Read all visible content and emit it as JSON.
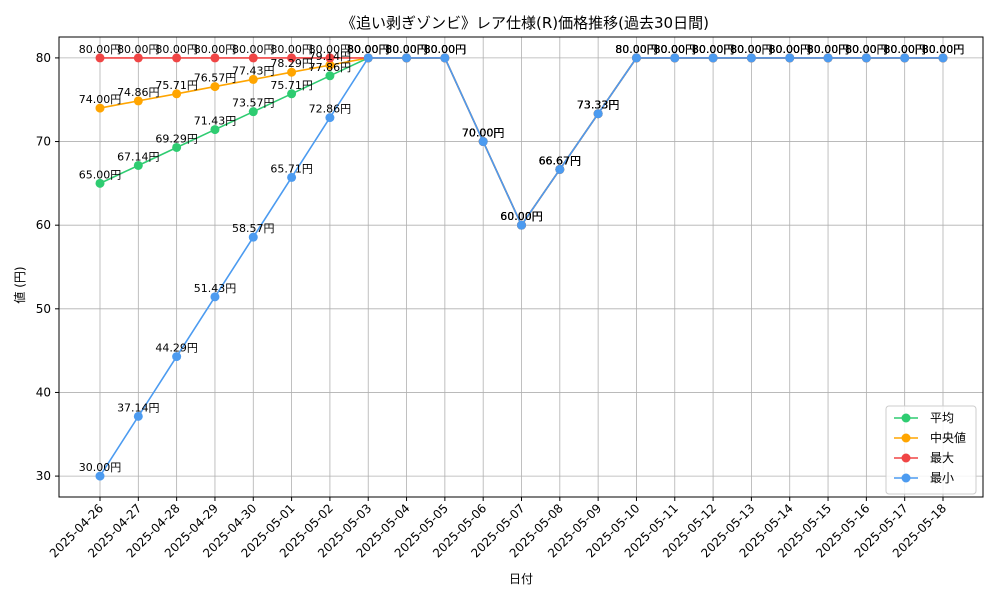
{
  "chart_data": {
    "type": "line",
    "title": "《追い剥ぎゾンビ》レア仕様(R)価格推移(過去30日間)",
    "xlabel": "日付",
    "ylabel": "値 (円)",
    "ylim": [
      27.5,
      82.5
    ],
    "yticks": [
      30,
      40,
      50,
      60,
      70,
      80
    ],
    "grid": true,
    "legend_position": "bottom-right",
    "label_suffix": "円",
    "categories": [
      "2025-04-26",
      "2025-04-27",
      "2025-04-28",
      "2025-04-29",
      "2025-04-30",
      "2025-05-01",
      "2025-05-02",
      "2025-05-03",
      "2025-05-04",
      "2025-05-05",
      "2025-05-06",
      "2025-05-07",
      "2025-05-08",
      "2025-05-09",
      "2025-05-10",
      "2025-05-11",
      "2025-05-12",
      "2025-05-13",
      "2025-05-14",
      "2025-05-15",
      "2025-05-16",
      "2025-05-17",
      "2025-05-18"
    ],
    "series": [
      {
        "name": "平均",
        "color": "#2ecc71",
        "values": [
          65.0,
          67.14,
          69.29,
          71.43,
          73.57,
          75.71,
          77.86,
          80,
          80,
          80,
          70,
          60,
          66.67,
          73.33,
          80,
          80,
          80,
          80,
          80,
          80,
          80,
          80,
          80
        ]
      },
      {
        "name": "中央値",
        "color": "#ffa500",
        "values": [
          74.0,
          74.86,
          75.71,
          76.57,
          77.43,
          78.29,
          79.14,
          80,
          80,
          80,
          70,
          60,
          66.67,
          73.33,
          80,
          80,
          80,
          80,
          80,
          80,
          80,
          80,
          80
        ]
      },
      {
        "name": "最大",
        "color": "#f04545",
        "values": [
          80,
          80,
          80,
          80,
          80,
          80,
          80,
          80,
          80,
          80,
          70,
          60,
          66.67,
          73.33,
          80,
          80,
          80,
          80,
          80,
          80,
          80,
          80,
          80
        ]
      },
      {
        "name": "最小",
        "color": "#4c9bf0",
        "values": [
          30.0,
          37.14,
          44.29,
          51.43,
          58.57,
          65.71,
          72.86,
          80,
          80,
          80,
          70,
          60,
          66.67,
          73.33,
          80,
          80,
          80,
          80,
          80,
          80,
          80,
          80,
          80
        ]
      }
    ]
  }
}
